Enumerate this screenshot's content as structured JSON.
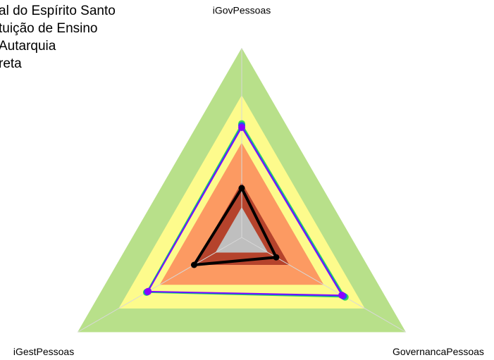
{
  "chart_data": {
    "type": "radar",
    "categories": [
      "iGovPessoas",
      "GovernancaPessoas",
      "iGestPessoas"
    ],
    "rlim": [
      0,
      1
    ],
    "bands": [
      {
        "value": 1.0,
        "color": "#b8e08a"
      },
      {
        "value": 0.75,
        "color": "#fdfb8c"
      },
      {
        "value": 0.5,
        "color": "#fc9a62"
      },
      {
        "value": 0.29,
        "color": "#b5432c"
      },
      {
        "value": 0.16,
        "color": "#bfbfbf"
      }
    ],
    "series": [
      {
        "name": "al do Espírito Santo",
        "color": "#33dd55",
        "values": [
          0.6,
          0.63,
          0.58
        ]
      },
      {
        "name": "tuição de Ensino",
        "color": "#2255ee",
        "values": [
          0.59,
          0.62,
          0.575
        ]
      },
      {
        "name": "Autarquia",
        "color": "#8a00ff",
        "values": [
          0.58,
          0.61,
          0.57
        ]
      },
      {
        "name": "reta",
        "color": "#000000",
        "values": [
          0.26,
          0.21,
          0.29
        ]
      }
    ],
    "legend": "top-left"
  }
}
